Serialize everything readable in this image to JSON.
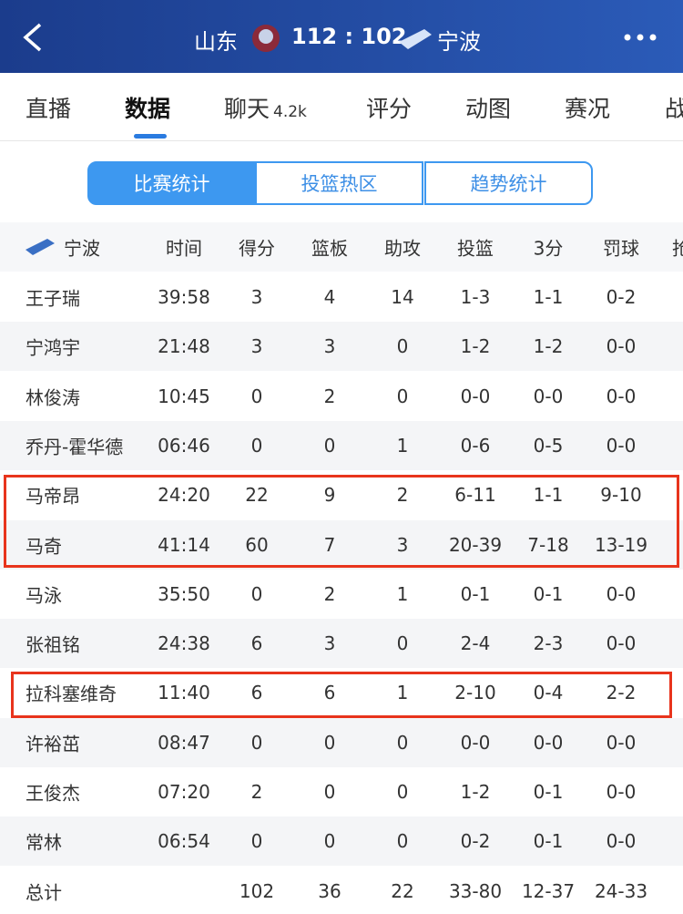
{
  "header": {
    "home_team": "山东",
    "score": "112 : 102",
    "away_team": "宁波"
  },
  "tabs": [
    "直播",
    "数据",
    "聊天",
    "评分",
    "动图",
    "赛况",
    "战"
  ],
  "chat_badge": "4.2k",
  "segments": [
    "比赛统计",
    "投篮热区",
    "趋势统计"
  ],
  "table": {
    "team": "宁波",
    "columns": [
      "时间",
      "得分",
      "篮板",
      "助攻",
      "投篮",
      "3分",
      "罚球",
      "抢"
    ],
    "rows": [
      [
        "王子瑞",
        "39:58",
        "3",
        "4",
        "14",
        "1-3",
        "1-1",
        "0-2"
      ],
      [
        "宁鸿宇",
        "21:48",
        "3",
        "3",
        "0",
        "1-2",
        "1-2",
        "0-0"
      ],
      [
        "林俊涛",
        "10:45",
        "0",
        "2",
        "0",
        "0-0",
        "0-0",
        "0-0"
      ],
      [
        "乔丹-霍华德",
        "06:46",
        "0",
        "0",
        "1",
        "0-6",
        "0-5",
        "0-0"
      ],
      [
        "马帝昂",
        "24:20",
        "22",
        "9",
        "2",
        "6-11",
        "1-1",
        "9-10"
      ],
      [
        "马奇",
        "41:14",
        "60",
        "7",
        "3",
        "20-39",
        "7-18",
        "13-19"
      ],
      [
        "马泳",
        "35:50",
        "0",
        "2",
        "1",
        "0-1",
        "0-1",
        "0-0"
      ],
      [
        "张祖铭",
        "24:38",
        "6",
        "3",
        "0",
        "2-4",
        "2-3",
        "0-0"
      ],
      [
        "拉科塞维奇",
        "11:40",
        "6",
        "6",
        "1",
        "2-10",
        "0-4",
        "2-2"
      ],
      [
        "许裕茁",
        "08:47",
        "0",
        "0",
        "0",
        "0-0",
        "0-0",
        "0-0"
      ],
      [
        "王俊杰",
        "07:20",
        "2",
        "0",
        "0",
        "1-2",
        "0-1",
        "0-0"
      ],
      [
        "常林",
        "06:54",
        "0",
        "0",
        "0",
        "0-2",
        "0-1",
        "0-0"
      ]
    ],
    "total": {
      "label": "总计",
      "values": [
        "102",
        "36",
        "22",
        "33-80",
        "12-37",
        "24-33"
      ]
    }
  }
}
